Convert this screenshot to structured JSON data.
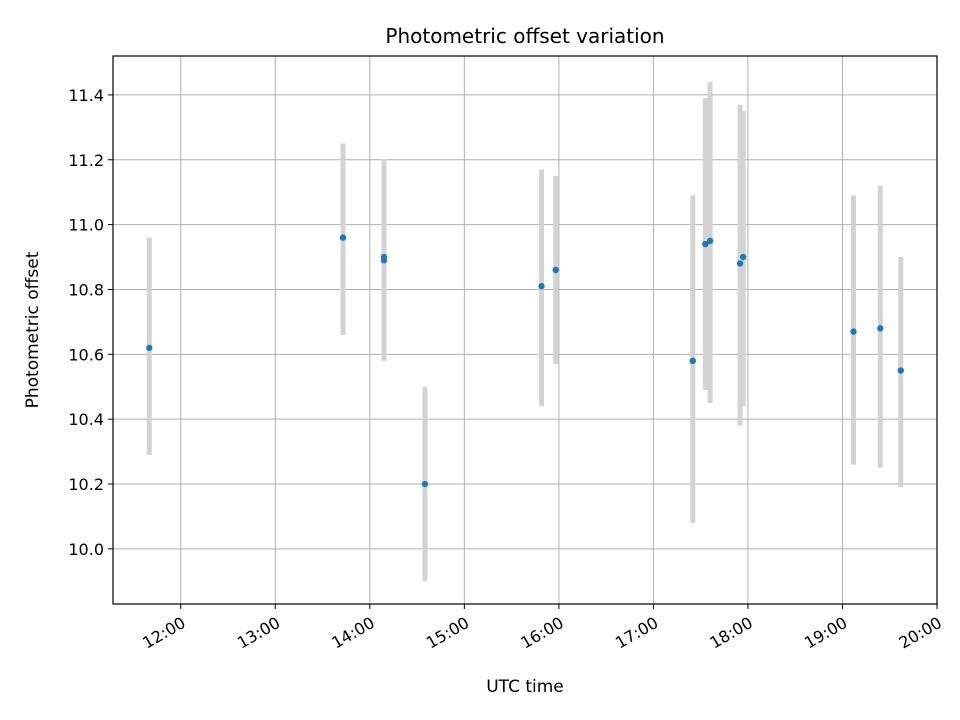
{
  "chart_data": {
    "type": "scatter",
    "title": "Photometric offset variation",
    "xlabel": "UTC time",
    "ylabel": "Photometric offset",
    "grid": true,
    "xlim": [
      "11:17",
      "20:00"
    ],
    "ylim": [
      9.83,
      11.52
    ],
    "x_ticks": [
      "12:00",
      "13:00",
      "14:00",
      "15:00",
      "16:00",
      "17:00",
      "18:00",
      "19:00",
      "20:00"
    ],
    "y_ticks": [
      "10.0",
      "10.2",
      "10.4",
      "10.6",
      "10.8",
      "11.0",
      "11.2",
      "11.4"
    ],
    "point_color": "#1f77b4",
    "errorbar_color": "#d3d3d3",
    "points": [
      {
        "time": "11:40",
        "y": 10.62,
        "err_low": 10.29,
        "err_high": 10.96
      },
      {
        "time": "13:43",
        "y": 10.96,
        "err_low": 10.66,
        "err_high": 11.25
      },
      {
        "time": "14:09",
        "y": 10.89,
        "err_low": 10.58,
        "err_high": 11.2
      },
      {
        "time": "14:09",
        "y": 10.9,
        "err_low": 10.58,
        "err_high": 11.2
      },
      {
        "time": "14:35",
        "y": 10.2,
        "err_low": 9.9,
        "err_high": 10.5
      },
      {
        "time": "15:49",
        "y": 10.81,
        "err_low": 10.44,
        "err_high": 11.17
      },
      {
        "time": "15:58",
        "y": 10.86,
        "err_low": 10.57,
        "err_high": 11.15
      },
      {
        "time": "17:25",
        "y": 10.58,
        "err_low": 10.08,
        "err_high": 11.09
      },
      {
        "time": "17:33",
        "y": 10.94,
        "err_low": 10.49,
        "err_high": 11.39
      },
      {
        "time": "17:36",
        "y": 10.95,
        "err_low": 10.45,
        "err_high": 11.44
      },
      {
        "time": "17:55",
        "y": 10.88,
        "err_low": 10.38,
        "err_high": 11.37
      },
      {
        "time": "17:57",
        "y": 10.9,
        "err_low": 10.44,
        "err_high": 11.35
      },
      {
        "time": "19:07",
        "y": 10.67,
        "err_low": 10.26,
        "err_high": 11.09
      },
      {
        "time": "19:24",
        "y": 10.68,
        "err_low": 10.25,
        "err_high": 11.12
      },
      {
        "time": "19:37",
        "y": 10.55,
        "err_low": 10.19,
        "err_high": 10.9
      }
    ]
  }
}
